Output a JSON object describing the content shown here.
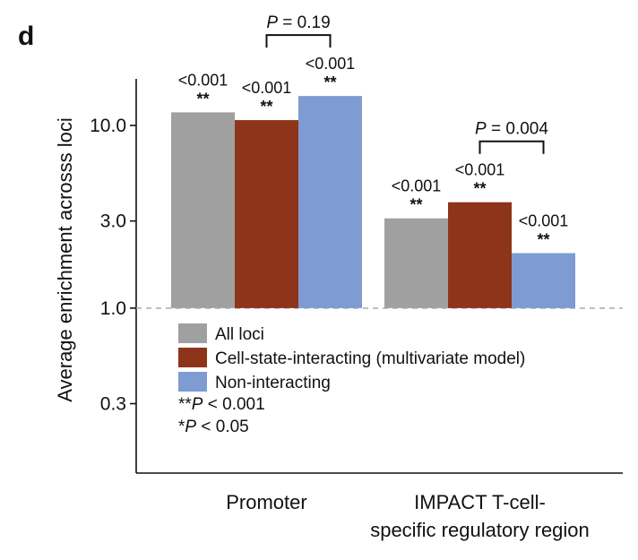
{
  "chart_data": {
    "type": "bar",
    "panel_label": "d",
    "ylabel": "Average enrichment acrosss loci",
    "yscale": "log",
    "ylim": [
      0.125,
      18
    ],
    "yticks": [
      {
        "value": 0.3,
        "label": "0.3"
      },
      {
        "value": 1.0,
        "label": "1.0"
      },
      {
        "value": 3.0,
        "label": "3.0"
      },
      {
        "value": 10.0,
        "label": "10.0"
      }
    ],
    "reference_line": 1.0,
    "categories": [
      "Promoter",
      "IMPACT T-cell- specific regulatory region"
    ],
    "category_lines": [
      [
        "Promoter"
      ],
      [
        "IMPACT T-cell-",
        "specific regulatory region"
      ]
    ],
    "series": [
      {
        "name": "All loci",
        "color": "#a0a0a0",
        "values": [
          11.8,
          3.1
        ],
        "pvalues": [
          "<0.001",
          "<0.001"
        ],
        "stars": [
          "**",
          "**"
        ]
      },
      {
        "name": "Cell-state-interacting (multivariate model)",
        "color": "#8e341a",
        "values": [
          10.7,
          3.8
        ],
        "pvalues": [
          "<0.001",
          "<0.001"
        ],
        "stars": [
          "**",
          "**"
        ]
      },
      {
        "name": "Non-interacting",
        "color": "#7e9bd2",
        "values": [
          14.5,
          2.0
        ],
        "pvalues": [
          "<0.001",
          "<0.001"
        ],
        "stars": [
          "**",
          "**"
        ]
      }
    ],
    "comparisons": [
      {
        "category": 0,
        "from_series": 1,
        "to_series": 2,
        "label": "P = 0.19"
      },
      {
        "category": 1,
        "from_series": 1,
        "to_series": 2,
        "label": "P = 0.004"
      }
    ],
    "legend": {
      "placement": "inside-lower-left",
      "notes": [
        "**P < 0.001",
        "*P < 0.05"
      ]
    }
  }
}
